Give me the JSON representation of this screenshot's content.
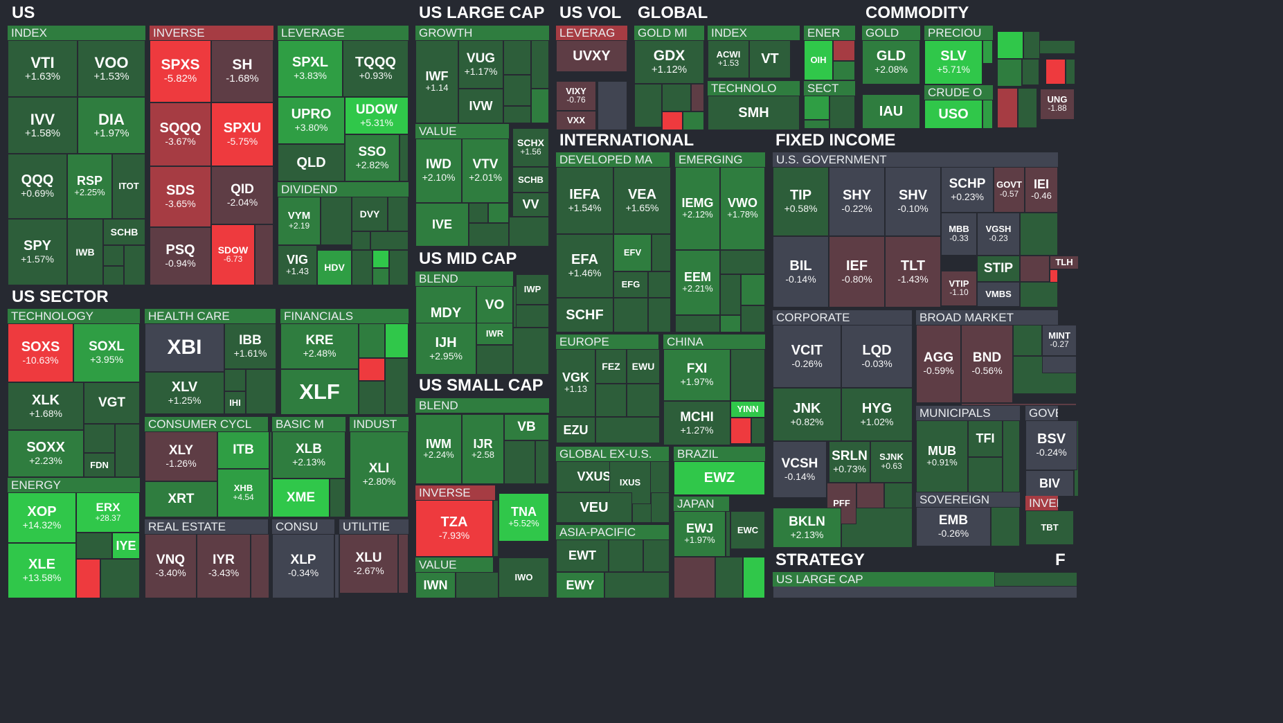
{
  "colors": {
    "strong_green": "#30c74a",
    "green": "#2f9e44",
    "mid_green": "#2f7d3f",
    "dark_green": "#2d5e3a",
    "neutral": "#414552",
    "dark_red": "#5e3d45",
    "red": "#a63c43",
    "strong_red": "#ee3a3e",
    "background": "#262931"
  },
  "sectors": [
    {
      "label": "US"
    },
    {
      "label": "US LARGE CAP"
    },
    {
      "label": "US VOL"
    },
    {
      "label": "GLOBAL"
    },
    {
      "label": "COMMODITY"
    },
    {
      "label": "INTERNATIONAL"
    },
    {
      "label": "FIXED INCOME"
    },
    {
      "label": "US SECTOR"
    },
    {
      "label": "US MID CAP"
    },
    {
      "label": "US SMALL CAP"
    },
    {
      "label": "STRATEGY"
    },
    {
      "label": "F"
    }
  ],
  "groups": [
    {
      "label": "INDEX"
    },
    {
      "label": "INVERSE"
    },
    {
      "label": "LEVERAGE"
    },
    {
      "label": "GROWTH"
    },
    {
      "label": "LEVERAG"
    },
    {
      "label": "GOLD MI"
    },
    {
      "label": "INDEX"
    },
    {
      "label": "ENER"
    },
    {
      "label": "GOLD"
    },
    {
      "label": "PRECIOU"
    },
    {
      "label": "TECHNOLO"
    },
    {
      "label": "SECT"
    },
    {
      "label": "CRUDE O"
    },
    {
      "label": "VALUE"
    },
    {
      "label": "DIVIDEND"
    },
    {
      "label": "DEVELOPED MA"
    },
    {
      "label": "EMERGING"
    },
    {
      "label": "U.S. GOVERNMENT"
    },
    {
      "label": "BLEND"
    },
    {
      "label": "TECHNOLOGY"
    },
    {
      "label": "HEALTH CARE"
    },
    {
      "label": "FINANCIALS"
    },
    {
      "label": "CORPORATE"
    },
    {
      "label": "BROAD MARKET"
    },
    {
      "label": "EUROPE"
    },
    {
      "label": "CHINA"
    },
    {
      "label": "BLEND"
    },
    {
      "label": "CONSUMER CYCL"
    },
    {
      "label": "BASIC M"
    },
    {
      "label": "INDUST"
    },
    {
      "label": "MUNICIPALS"
    },
    {
      "label": "GOVE"
    },
    {
      "label": "GLOBAL EX-U.S."
    },
    {
      "label": "BRAZIL"
    },
    {
      "label": "ENERGY"
    },
    {
      "label": "INVERSE"
    },
    {
      "label": "SOVEREIGN"
    },
    {
      "label": "INVER"
    },
    {
      "label": "JAPAN"
    },
    {
      "label": "REAL ESTATE"
    },
    {
      "label": "CONSU"
    },
    {
      "label": "UTILITIE"
    },
    {
      "label": "ASIA-PACIFIC"
    },
    {
      "label": "VALUE"
    },
    {
      "label": "US LARGE CAP"
    }
  ],
  "tiles": [
    {
      "ticker": "VTI",
      "change": "+1.63%",
      "color": "dark_green"
    },
    {
      "ticker": "VOO",
      "change": "+1.53%",
      "color": "dark_green"
    },
    {
      "ticker": "IVV",
      "change": "+1.58%",
      "color": "dark_green"
    },
    {
      "ticker": "DIA",
      "change": "+1.97%",
      "color": "mid_green"
    },
    {
      "ticker": "QQQ",
      "change": "+0.69%",
      "color": "dark_green"
    },
    {
      "ticker": "RSP",
      "change": "+2.25%",
      "color": "mid_green"
    },
    {
      "ticker": "ITOT",
      "change": "",
      "color": "dark_green"
    },
    {
      "ticker": "SPY",
      "change": "+1.57%",
      "color": "dark_green"
    },
    {
      "ticker": "IWB",
      "change": "",
      "color": "dark_green"
    },
    {
      "ticker": "SCHB",
      "change": "",
      "color": "dark_green"
    },
    {
      "ticker": "SPXS",
      "change": "-5.82%",
      "color": "strong_red"
    },
    {
      "ticker": "SH",
      "change": "-1.68%",
      "color": "dark_red"
    },
    {
      "ticker": "SQQQ",
      "change": "-3.67%",
      "color": "red"
    },
    {
      "ticker": "SPXU",
      "change": "-5.75%",
      "color": "strong_red"
    },
    {
      "ticker": "SDS",
      "change": "-3.65%",
      "color": "red"
    },
    {
      "ticker": "QID",
      "change": "-2.04%",
      "color": "dark_red"
    },
    {
      "ticker": "PSQ",
      "change": "-0.94%",
      "color": "dark_red"
    },
    {
      "ticker": "SDOW",
      "change": "-6.73",
      "color": "strong_red"
    },
    {
      "ticker": "SPXL",
      "change": "+3.83%",
      "color": "green"
    },
    {
      "ticker": "TQQQ",
      "change": "+0.93%",
      "color": "dark_green"
    },
    {
      "ticker": "UPRO",
      "change": "+3.80%",
      "color": "green"
    },
    {
      "ticker": "UDOW",
      "change": "+5.31%",
      "color": "strong_green"
    },
    {
      "ticker": "QLD",
      "change": "",
      "color": "dark_green"
    },
    {
      "ticker": "SSO",
      "change": "+2.82%",
      "color": "mid_green"
    },
    {
      "ticker": "VYM",
      "change": "+2.19",
      "color": "mid_green"
    },
    {
      "ticker": "DVY",
      "change": "",
      "color": "dark_green"
    },
    {
      "ticker": "VIG",
      "change": "+1.43",
      "color": "dark_green"
    },
    {
      "ticker": "HDV",
      "change": "",
      "color": "green"
    },
    {
      "ticker": "IWF",
      "change": "+1.14",
      "color": "dark_green"
    },
    {
      "ticker": "VUG",
      "change": "+1.17%",
      "color": "dark_green"
    },
    {
      "ticker": "IVW",
      "change": "",
      "color": "dark_green"
    },
    {
      "ticker": "IWD",
      "change": "+2.10%",
      "color": "mid_green"
    },
    {
      "ticker": "VTV",
      "change": "+2.01%",
      "color": "mid_green"
    },
    {
      "ticker": "SCHX",
      "change": "+1.56",
      "color": "dark_green"
    },
    {
      "ticker": "SCHB",
      "change": "",
      "color": "dark_green"
    },
    {
      "ticker": "VV",
      "change": "",
      "color": "dark_green"
    },
    {
      "ticker": "IVE",
      "change": "",
      "color": "mid_green"
    },
    {
      "ticker": "UVXY",
      "change": "",
      "color": "dark_red"
    },
    {
      "ticker": "VIXY",
      "change": "-0.76",
      "color": "dark_red"
    },
    {
      "ticker": "VXX",
      "change": "",
      "color": "dark_red"
    },
    {
      "ticker": "GDX",
      "change": "+1.12%",
      "color": "dark_green"
    },
    {
      "ticker": "ACWI",
      "change": "+1.53",
      "color": "dark_green"
    },
    {
      "ticker": "VT",
      "change": "",
      "color": "dark_green"
    },
    {
      "ticker": "OIH",
      "change": "",
      "color": "strong_green"
    },
    {
      "ticker": "SMH",
      "change": "",
      "color": "dark_green"
    },
    {
      "ticker": "GLD",
      "change": "+2.08%",
      "color": "mid_green"
    },
    {
      "ticker": "SLV",
      "change": "+5.71%",
      "color": "strong_green"
    },
    {
      "ticker": "IAU",
      "change": "",
      "color": "mid_green"
    },
    {
      "ticker": "USO",
      "change": "",
      "color": "strong_green"
    },
    {
      "ticker": "UNG",
      "change": "-1.88",
      "color": "dark_red"
    },
    {
      "ticker": "IEFA",
      "change": "+1.54%",
      "color": "dark_green"
    },
    {
      "ticker": "VEA",
      "change": "+1.65%",
      "color": "dark_green"
    },
    {
      "ticker": "EFA",
      "change": "+1.46%",
      "color": "dark_green"
    },
    {
      "ticker": "EFV",
      "change": "",
      "color": "mid_green"
    },
    {
      "ticker": "EFG",
      "change": "",
      "color": "dark_green"
    },
    {
      "ticker": "SCHF",
      "change": "",
      "color": "dark_green"
    },
    {
      "ticker": "IEMG",
      "change": "+2.12%",
      "color": "mid_green"
    },
    {
      "ticker": "VWO",
      "change": "+1.78%",
      "color": "mid_green"
    },
    {
      "ticker": "EEM",
      "change": "+2.21%",
      "color": "mid_green"
    },
    {
      "ticker": "TIP",
      "change": "+0.58%",
      "color": "dark_green"
    },
    {
      "ticker": "SHY",
      "change": "-0.22%",
      "color": "neutral"
    },
    {
      "ticker": "SHV",
      "change": "-0.10%",
      "color": "neutral"
    },
    {
      "ticker": "SCHP",
      "change": "+0.23%",
      "color": "neutral"
    },
    {
      "ticker": "GOVT",
      "change": "-0.57",
      "color": "dark_red"
    },
    {
      "ticker": "IEI",
      "change": "-0.46",
      "color": "dark_red"
    },
    {
      "ticker": "MBB",
      "change": "-0.33",
      "color": "neutral"
    },
    {
      "ticker": "VGSH",
      "change": "-0.23",
      "color": "neutral"
    },
    {
      "ticker": "BIL",
      "change": "-0.14%",
      "color": "neutral"
    },
    {
      "ticker": "IEF",
      "change": "-0.80%",
      "color": "dark_red"
    },
    {
      "ticker": "TLT",
      "change": "-1.43%",
      "color": "dark_red"
    },
    {
      "ticker": "STIP",
      "change": "",
      "color": "dark_green"
    },
    {
      "ticker": "TLH",
      "change": "",
      "color": "dark_red"
    },
    {
      "ticker": "VTIP",
      "change": "-1.10",
      "color": "dark_red"
    },
    {
      "ticker": "VMBS",
      "change": "",
      "color": "neutral"
    },
    {
      "ticker": "MDY",
      "change": "+2.86%",
      "color": "mid_green"
    },
    {
      "ticker": "VO",
      "change": "",
      "color": "mid_green"
    },
    {
      "ticker": "IWP",
      "change": "",
      "color": "dark_green"
    },
    {
      "ticker": "IJH",
      "change": "+2.95%",
      "color": "mid_green"
    },
    {
      "ticker": "IWR",
      "change": "",
      "color": "mid_green"
    },
    {
      "ticker": "SOXS",
      "change": "-10.63%",
      "color": "strong_red"
    },
    {
      "ticker": "SOXL",
      "change": "+3.95%",
      "color": "green"
    },
    {
      "ticker": "XLK",
      "change": "+1.68%",
      "color": "dark_green"
    },
    {
      "ticker": "VGT",
      "change": "",
      "color": "dark_green"
    },
    {
      "ticker": "SOXX",
      "change": "+2.23%",
      "color": "mid_green"
    },
    {
      "ticker": "FDN",
      "change": "",
      "color": "dark_green"
    },
    {
      "ticker": "XBI",
      "change": "",
      "color": "neutral"
    },
    {
      "ticker": "IBB",
      "change": "+1.61%",
      "color": "dark_green"
    },
    {
      "ticker": "XLV",
      "change": "+1.25%",
      "color": "dark_green"
    },
    {
      "ticker": "IHI",
      "change": "",
      "color": "dark_green"
    },
    {
      "ticker": "KRE",
      "change": "+2.48%",
      "color": "mid_green"
    },
    {
      "ticker": "XLF",
      "change": "",
      "color": "mid_green"
    },
    {
      "ticker": "VCIT",
      "change": "-0.26%",
      "color": "neutral"
    },
    {
      "ticker": "LQD",
      "change": "-0.03%",
      "color": "neutral"
    },
    {
      "ticker": "AGG",
      "change": "-0.59%",
      "color": "dark_red"
    },
    {
      "ticker": "BND",
      "change": "-0.56%",
      "color": "dark_red"
    },
    {
      "ticker": "MINT",
      "change": "-0.27",
      "color": "neutral"
    },
    {
      "ticker": "VGK",
      "change": "+1.13",
      "color": "dark_green"
    },
    {
      "ticker": "FEZ",
      "change": "",
      "color": "dark_green"
    },
    {
      "ticker": "EWU",
      "change": "",
      "color": "dark_green"
    },
    {
      "ticker": "EZU",
      "change": "",
      "color": "dark_green"
    },
    {
      "ticker": "FXI",
      "change": "+1.97%",
      "color": "mid_green"
    },
    {
      "ticker": "MCHI",
      "change": "+1.27%",
      "color": "dark_green"
    },
    {
      "ticker": "YINN",
      "change": "",
      "color": "strong_green"
    },
    {
      "ticker": "VB",
      "change": "",
      "color": "mid_green"
    },
    {
      "ticker": "IWM",
      "change": "+2.24%",
      "color": "mid_green"
    },
    {
      "ticker": "IJR",
      "change": "+2.58",
      "color": "mid_green"
    },
    {
      "ticker": "XLY",
      "change": "-1.26%",
      "color": "dark_red"
    },
    {
      "ticker": "ITB",
      "change": "",
      "color": "green"
    },
    {
      "ticker": "XRT",
      "change": "",
      "color": "mid_green"
    },
    {
      "ticker": "XHB",
      "change": "+4.54",
      "color": "green"
    },
    {
      "ticker": "XLB",
      "change": "+2.13%",
      "color": "mid_green"
    },
    {
      "ticker": "XME",
      "change": "",
      "color": "strong_green"
    },
    {
      "ticker": "XLI",
      "change": "+2.80%",
      "color": "mid_green"
    },
    {
      "ticker": "JNK",
      "change": "+0.82%",
      "color": "dark_green"
    },
    {
      "ticker": "HYG",
      "change": "+1.02%",
      "color": "dark_green"
    },
    {
      "ticker": "VCSH",
      "change": "-0.14%",
      "color": "neutral"
    },
    {
      "ticker": "SRLN",
      "change": "+0.73%",
      "color": "dark_green"
    },
    {
      "ticker": "SJNK",
      "change": "+0.63",
      "color": "dark_green"
    },
    {
      "ticker": "PFF",
      "change": "",
      "color": "dark_red"
    },
    {
      "ticker": "BKLN",
      "change": "+2.13%",
      "color": "mid_green"
    },
    {
      "ticker": "MUB",
      "change": "+0.91%",
      "color": "dark_green"
    },
    {
      "ticker": "TFI",
      "change": "",
      "color": "dark_green"
    },
    {
      "ticker": "BSV",
      "change": "-0.24%",
      "color": "neutral"
    },
    {
      "ticker": "BIV",
      "change": "",
      "color": "neutral"
    },
    {
      "ticker": "EMB",
      "change": "-0.26%",
      "color": "neutral"
    },
    {
      "ticker": "TBT",
      "change": "",
      "color": "dark_green"
    },
    {
      "ticker": "VXUS",
      "change": "",
      "color": "dark_green"
    },
    {
      "ticker": "IXUS",
      "change": "",
      "color": "dark_green"
    },
    {
      "ticker": "VEU",
      "change": "",
      "color": "dark_green"
    },
    {
      "ticker": "EWZ",
      "change": "",
      "color": "strong_green"
    },
    {
      "ticker": "EWJ",
      "change": "+1.97%",
      "color": "mid_green"
    },
    {
      "ticker": "EWC",
      "change": "",
      "color": "dark_green"
    },
    {
      "ticker": "EWT",
      "change": "",
      "color": "dark_green"
    },
    {
      "ticker": "EWY",
      "change": "",
      "color": "mid_green"
    },
    {
      "ticker": "XOP",
      "change": "+14.32%",
      "color": "strong_green"
    },
    {
      "ticker": "ERX",
      "change": "+28.37",
      "color": "strong_green"
    },
    {
      "ticker": "IYE",
      "change": "",
      "color": "strong_green"
    },
    {
      "ticker": "XLE",
      "change": "+13.58%",
      "color": "strong_green"
    },
    {
      "ticker": "TZA",
      "change": "-7.93%",
      "color": "strong_red"
    },
    {
      "ticker": "TNA",
      "change": "+5.52%",
      "color": "strong_green"
    },
    {
      "ticker": "IWN",
      "change": "",
      "color": "mid_green"
    },
    {
      "ticker": "IWO",
      "change": "",
      "color": "dark_green"
    },
    {
      "ticker": "VNQ",
      "change": "-3.40%",
      "color": "dark_red"
    },
    {
      "ticker": "IYR",
      "change": "-3.43%",
      "color": "dark_red"
    },
    {
      "ticker": "XLP",
      "change": "-0.34%",
      "color": "neutral"
    },
    {
      "ticker": "XLU",
      "change": "-2.67%",
      "color": "dark_red"
    }
  ]
}
